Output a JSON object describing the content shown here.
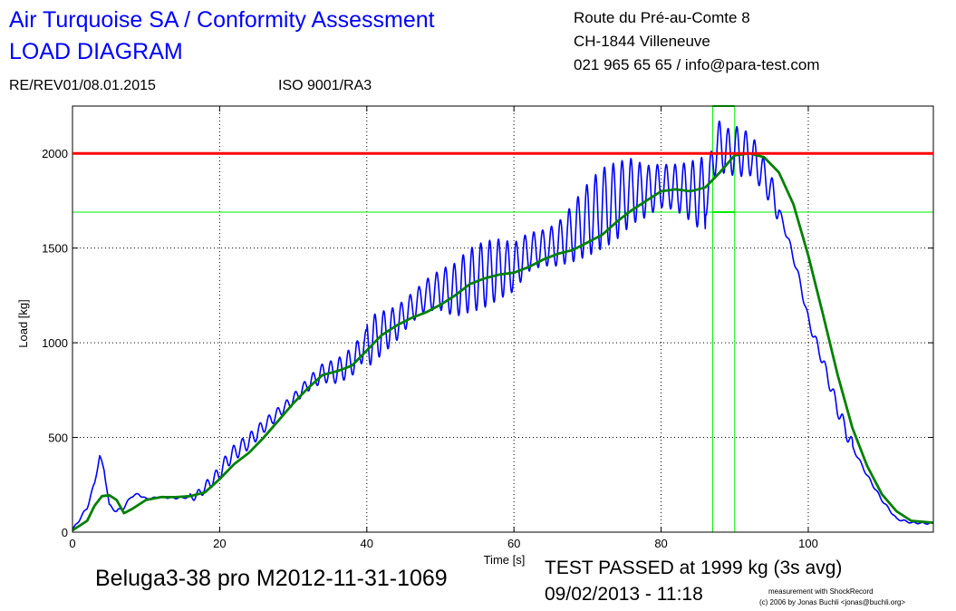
{
  "header": {
    "title_line1": "Air Turquoise SA / Conformity Assessment",
    "title_line2": "LOAD DIAGRAM",
    "address_line1": "Route du Pré-au-Comte 8",
    "address_line2": "CH-1844 Villeneuve",
    "address_line3": "021 965 65 65 / info@para-test.com",
    "revision": "RE/REV01/08.01.2015",
    "standard": "ISO 9001/RA3"
  },
  "footer": {
    "test_id": "Beluga3-38 pro M2012-11-31-1069",
    "result": "TEST PASSED at 1999 kg (3s avg)",
    "datetime": "09/02/2013 - 11:18",
    "credit_line1": "measurement with ShockRecord",
    "credit_line2": "(c) 2006 by Jonas Buchli <jonas@buchli.org>"
  },
  "colors": {
    "raw": "#0000ff",
    "avg": "#008000",
    "limit": "#ff0000",
    "marker": "#00ee00",
    "title": "#0000ff"
  },
  "chart_data": {
    "type": "line",
    "xlabel": "Time [s]",
    "ylabel": "Load [kg]",
    "xlim": [
      0,
      117
    ],
    "ylim": [
      0,
      2250
    ],
    "xticks": [
      0,
      20,
      40,
      60,
      80,
      100
    ],
    "yticks": [
      0,
      500,
      1000,
      1500,
      2000
    ],
    "grid": true,
    "limit_line": 2000,
    "marker_level": 1690,
    "marker_window": [
      87,
      90
    ],
    "series": [
      {
        "style": "raw",
        "x": [
          0,
          1,
          2,
          3,
          3.7,
          4.3,
          5,
          6,
          7,
          8,
          9,
          10,
          12,
          14,
          16,
          17,
          18,
          20,
          21,
          22,
          24,
          26,
          28,
          30,
          32,
          34,
          36,
          38,
          40,
          42,
          44,
          46,
          48,
          50,
          52,
          54,
          56,
          58,
          60,
          62,
          64,
          66,
          68,
          70,
          72,
          74,
          76,
          78,
          80,
          82,
          84,
          86,
          86.5,
          87,
          88,
          89,
          90,
          91,
          92,
          93,
          94,
          95,
          96,
          97,
          98,
          99,
          100,
          102,
          104,
          106,
          108,
          110,
          112,
          114,
          117
        ],
        "y": [
          10,
          70,
          130,
          260,
          400,
          330,
          140,
          110,
          130,
          190,
          200,
          175,
          185,
          180,
          185,
          195,
          235,
          310,
          380,
          420,
          480,
          560,
          630,
          700,
          780,
          840,
          850,
          900,
          1000,
          1050,
          1100,
          1180,
          1250,
          1280,
          1280,
          1330,
          1360,
          1390,
          1400,
          1480,
          1500,
          1520,
          1580,
          1650,
          1710,
          1750,
          1800,
          1800,
          1830,
          1820,
          1800,
          1780,
          1800,
          1980,
          2050,
          2000,
          2020,
          2000,
          2000,
          1950,
          1880,
          1800,
          1700,
          1580,
          1450,
          1300,
          1120,
          900,
          650,
          450,
          300,
          170,
          70,
          50,
          45
        ]
      },
      {
        "style": "avg",
        "x": [
          0,
          2,
          3,
          4,
          5,
          6,
          7,
          8,
          10,
          12,
          14,
          16,
          18,
          20,
          22,
          24,
          26,
          28,
          30,
          32,
          34,
          36,
          38,
          40,
          42,
          44,
          46,
          48,
          50,
          52,
          54,
          56,
          58,
          60,
          62,
          64,
          66,
          68,
          70,
          72,
          74,
          76,
          78,
          80,
          82,
          84,
          86,
          88,
          90,
          92,
          94,
          96,
          98,
          100,
          102,
          104,
          106,
          108,
          110,
          112,
          114,
          117
        ],
        "y": [
          10,
          60,
          140,
          190,
          195,
          170,
          100,
          120,
          170,
          185,
          185,
          190,
          210,
          280,
          360,
          420,
          500,
          590,
          680,
          760,
          830,
          850,
          880,
          960,
          1040,
          1090,
          1130,
          1160,
          1200,
          1250,
          1310,
          1340,
          1360,
          1370,
          1400,
          1440,
          1470,
          1490,
          1530,
          1570,
          1640,
          1700,
          1750,
          1800,
          1810,
          1800,
          1820,
          1900,
          1990,
          2000,
          1980,
          1900,
          1730,
          1460,
          1150,
          830,
          550,
          350,
          200,
          110,
          60,
          50
        ]
      }
    ]
  }
}
